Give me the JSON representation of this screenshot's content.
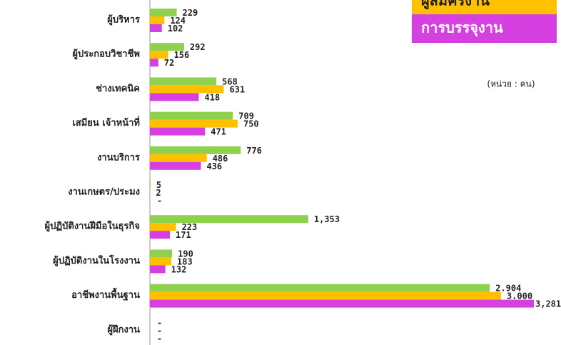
{
  "chart_data": {
    "type": "bar",
    "orientation": "horizontal",
    "annotation": "(หน่วย : คน)",
    "categories": [
      "ผู้บริหาร",
      "ผู้ประกอบวิชาชีพ",
      "ช่างเทคนิค",
      "เสมียน เจ้าหน้าที่",
      "งานบริการ",
      "งานเกษตร/ประมง",
      "ผู้ปฏิบัติงานฝีมือในธุรกิจ",
      "ผู้ปฏิบัติงานในโรงงาน",
      "อาชีพงานพื้นฐาน",
      "ผู้ฝึกงาน"
    ],
    "series": [
      {
        "color": "#8fd14f",
        "values": [
          229,
          292,
          568,
          709,
          776,
          5,
          1353,
          190,
          2904,
          null
        ],
        "value_labels": [
          "229",
          "292",
          "568",
          "709",
          "776",
          "5",
          "1,353",
          "190",
          "2.904",
          "-"
        ]
      },
      {
        "name": "ผู้สมัครงาน",
        "color": "#ffc000",
        "values": [
          124,
          156,
          631,
          750,
          486,
          2,
          223,
          183,
          3000,
          null
        ],
        "value_labels": [
          "124",
          "156",
          "631",
          "750",
          "486",
          "2",
          "223",
          "183",
          "3.000",
          "-"
        ]
      },
      {
        "name": "การบรรจุงาน",
        "color": "#d63fe0",
        "values": [
          102,
          72,
          418,
          471,
          436,
          null,
          171,
          132,
          3281,
          null
        ],
        "value_labels": [
          "102",
          "72",
          "418",
          "471",
          "436",
          "-",
          "171",
          "132",
          "3,281",
          "-"
        ]
      }
    ]
  }
}
